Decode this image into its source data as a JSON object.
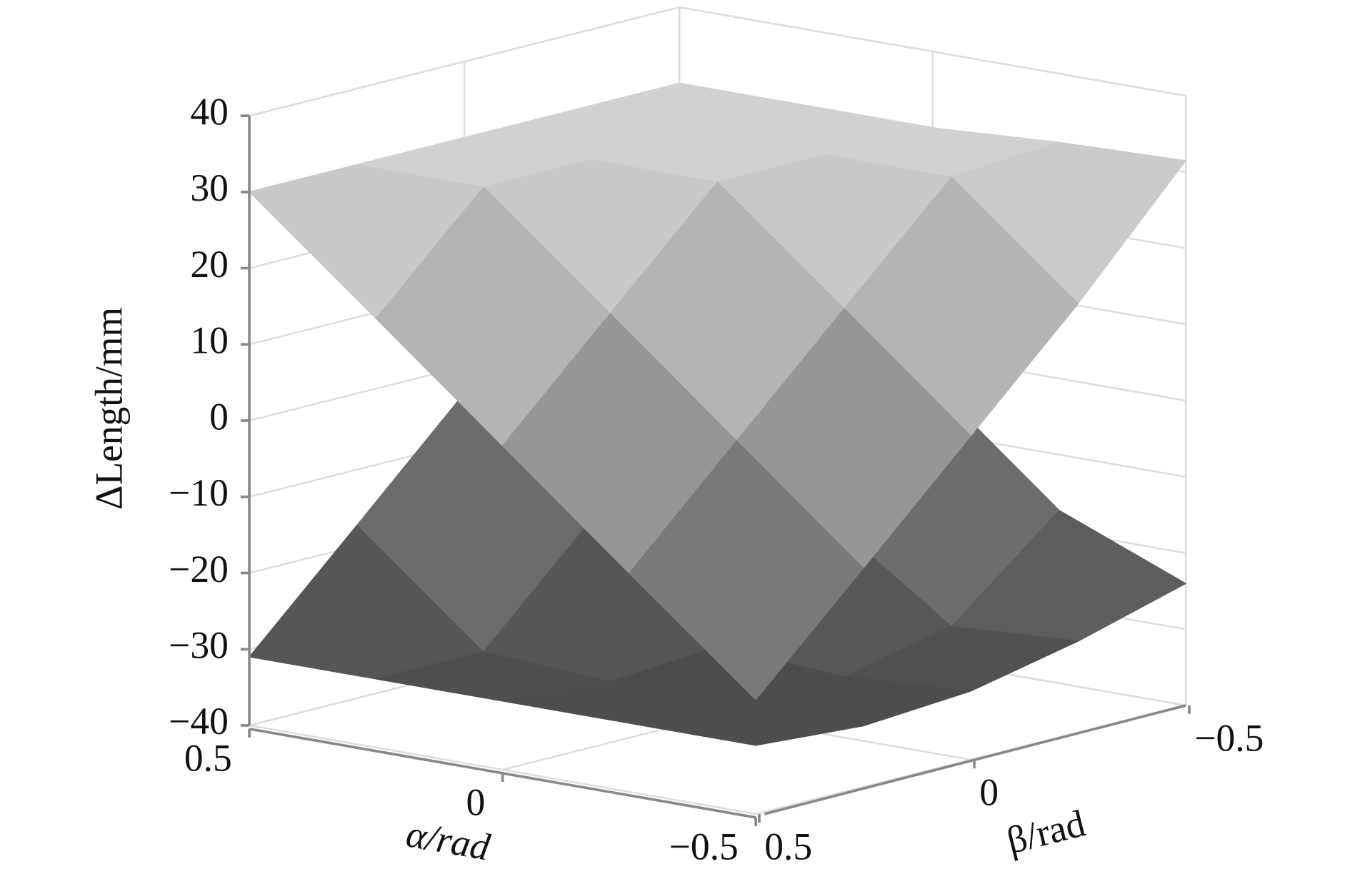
{
  "chart_data": {
    "type": "surface",
    "zlabel": "ΔLength/mm",
    "xlabel": "α/rad",
    "ylabel": "β/rad",
    "x": [
      0.5,
      0.25,
      0,
      -0.25,
      -0.5
    ],
    "y": [
      0.5,
      0.25,
      0,
      -0.25,
      -0.5
    ],
    "series": [
      {
        "values": [
          [
            30,
            30,
            30,
            30,
            30
          ],
          [
            16.3,
            30,
            30,
            30,
            30
          ],
          [
            2.5,
            16.3,
            30,
            30,
            30
          ],
          [
            -11.3,
            2.5,
            16.3,
            30,
            31
          ],
          [
            -25,
            -11.3,
            2.5,
            16.3,
            31.5
          ]
        ]
      },
      {
        "values": [
          [
            -31,
            -17.3,
            -3.5,
            10.3,
            24
          ],
          [
            -31,
            -31,
            -17.3,
            -3.5,
            10.3
          ],
          [
            -31,
            -32,
            -31,
            -17.3,
            -3.5
          ],
          [
            -31,
            -33,
            -32,
            -29,
            -17.3
          ],
          [
            -31,
            -32,
            -31,
            -28,
            -24
          ]
        ]
      }
    ],
    "xlim": [
      0.5,
      -0.5
    ],
    "ylim": [
      0.5,
      -0.5
    ],
    "zlim": [
      -40,
      40
    ],
    "xticks": [
      0.5,
      0,
      {
        "value": -0.5,
        "label": "−0.5"
      }
    ],
    "yticks": [
      0.5,
      0,
      {
        "value": -0.5,
        "label": "−0.5"
      }
    ],
    "zticks": [
      {
        "value": -40,
        "label": "−40"
      },
      {
        "value": -30,
        "label": "−30"
      },
      {
        "value": -20,
        "label": "−20"
      },
      {
        "value": -10,
        "label": "−10"
      },
      0,
      10,
      20,
      30,
      40
    ],
    "grid": true,
    "colormap": "gray"
  }
}
